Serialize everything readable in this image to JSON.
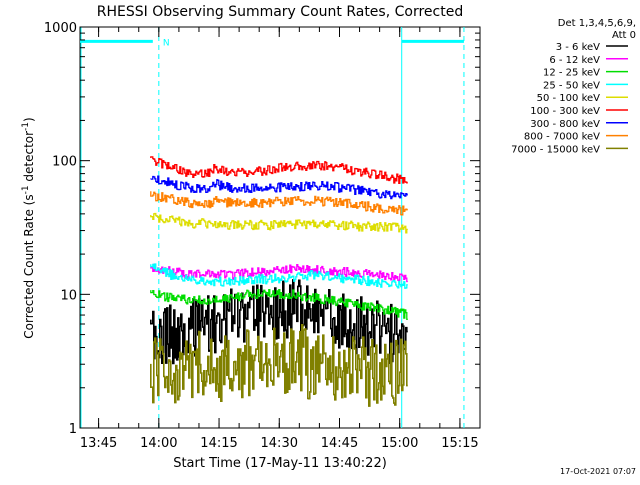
{
  "chart_data": {
    "type": "line",
    "title": "RHESSI Observing Summary Count Rates, Corrected",
    "xlabel": "Start Time (17-May-11 13:40:22)",
    "ylabel_main": "Corrected Count Rate (s",
    "ylabel_sup1": "-1",
    "ylabel_mid": " detector",
    "ylabel_sup2": "-1",
    "ylabel_end": ")",
    "footer": "17-Oct-2021 07:07",
    "y_scale": "log",
    "ylim": [
      1,
      1000
    ],
    "y_ticks": [
      "1",
      "10",
      "100",
      "1000"
    ],
    "xlim": [
      "13:40:22",
      "15:20:00"
    ],
    "x_ticks": [
      "13:45",
      "14:00",
      "14:15",
      "14:30",
      "14:45",
      "15:00",
      "15:15"
    ],
    "legend": {
      "header": [
        "Det 1,3,4,5,6,9,",
        "Att 0"
      ],
      "placement": "top-right",
      "entries": [
        {
          "label": "3 - 6 keV",
          "color": "#000000"
        },
        {
          "label": "6 - 12 keV",
          "color": "#ff00ff"
        },
        {
          "label": "12 - 25 keV",
          "color": "#00dd00"
        },
        {
          "label": "25 - 50 keV",
          "color": "#00ffff"
        },
        {
          "label": "50 - 100 keV",
          "color": "#dddd00"
        },
        {
          "label": "100 - 300 keV",
          "color": "#ff0000"
        },
        {
          "label": "300 - 800 keV",
          "color": "#0000ff"
        },
        {
          "label": "800 - 7000 keV",
          "color": "#ff8000"
        },
        {
          "label": "7000 - 15000 keV",
          "color": "#808000"
        }
      ]
    },
    "flags": {
      "night_label": "N",
      "color": "#00ffff",
      "boundaries": [
        "13:40:22",
        "14:00:00",
        "15:00:30",
        "15:16:00"
      ]
    },
    "series": [
      {
        "name": "3 - 6 keV",
        "color": "#000000",
        "x": [
          "13:58:00",
          "14:03:00",
          "14:08:00",
          "14:13:00",
          "14:18:00",
          "14:23:00",
          "14:28:00",
          "14:33:00",
          "14:38:00",
          "14:43:00",
          "14:48:00",
          "14:53:00",
          "14:58:00",
          "15:02:00"
        ],
        "y": [
          5.0,
          5.0,
          5.5,
          6.0,
          6.5,
          7.0,
          7.5,
          8.0,
          7.0,
          6.5,
          6.0,
          5.5,
          5.0,
          4.5
        ]
      },
      {
        "name": "6 - 12 keV",
        "color": "#ff00ff",
        "x": [
          "13:58:00",
          "14:03:00",
          "14:08:00",
          "14:13:00",
          "14:18:00",
          "14:23:00",
          "14:28:00",
          "14:33:00",
          "14:38:00",
          "14:43:00",
          "14:48:00",
          "14:53:00",
          "14:58:00",
          "15:02:00"
        ],
        "y": [
          16,
          15,
          14,
          14,
          14,
          14.5,
          15,
          15.5,
          15.5,
          15,
          14.5,
          14,
          13.5,
          13
        ]
      },
      {
        "name": "12 - 25 keV",
        "color": "#00dd00",
        "x": [
          "13:58:00",
          "14:03:00",
          "14:08:00",
          "14:13:00",
          "14:18:00",
          "14:23:00",
          "14:28:00",
          "14:33:00",
          "14:38:00",
          "14:43:00",
          "14:48:00",
          "14:53:00",
          "14:58:00",
          "15:02:00"
        ],
        "y": [
          10,
          9.5,
          9,
          9,
          9.5,
          10,
          10,
          10,
          9.5,
          9,
          8.5,
          8,
          7.5,
          7
        ]
      },
      {
        "name": "25 - 50 keV",
        "color": "#00ffff",
        "x": [
          "13:58:00",
          "14:03:00",
          "14:08:00",
          "14:13:00",
          "14:18:00",
          "14:23:00",
          "14:28:00",
          "14:33:00",
          "14:38:00",
          "14:43:00",
          "14:48:00",
          "14:53:00",
          "14:58:00",
          "15:02:00"
        ],
        "y": [
          16,
          14,
          13,
          12.5,
          12.5,
          13,
          13,
          13.5,
          14,
          13.5,
          13,
          12.5,
          12,
          11.5
        ]
      },
      {
        "name": "50 - 100 keV",
        "color": "#dddd00",
        "x": [
          "13:58:00",
          "14:03:00",
          "14:08:00",
          "14:13:00",
          "14:18:00",
          "14:23:00",
          "14:28:00",
          "14:33:00",
          "14:38:00",
          "14:43:00",
          "14:48:00",
          "14:53:00",
          "14:58:00",
          "15:02:00"
        ],
        "y": [
          38,
          36,
          34,
          34,
          33,
          33,
          33,
          33.5,
          33.5,
          33,
          32.5,
          32,
          31.5,
          31
        ]
      },
      {
        "name": "100 - 300 keV",
        "color": "#ff0000",
        "x": [
          "13:58:00",
          "14:03:00",
          "14:08:00",
          "14:13:00",
          "14:14:00",
          "14:18:00",
          "14:23:00",
          "14:28:00",
          "14:33:00",
          "14:38:00",
          "14:43:00",
          "14:48:00",
          "14:53:00",
          "14:58:00",
          "15:02:00"
        ],
        "y": [
          100,
          90,
          80,
          82,
          88,
          80,
          82,
          86,
          90,
          92,
          90,
          85,
          80,
          74,
          72
        ]
      },
      {
        "name": "300 - 800 keV",
        "color": "#0000ff",
        "x": [
          "13:58:00",
          "14:03:00",
          "14:08:00",
          "14:13:00",
          "14:14:00",
          "14:18:00",
          "14:23:00",
          "14:28:00",
          "14:33:00",
          "14:38:00",
          "14:43:00",
          "14:48:00",
          "14:53:00",
          "14:58:00",
          "15:02:00"
        ],
        "y": [
          73,
          68,
          62,
          62,
          67,
          62,
          62,
          63,
          64,
          65,
          64,
          61,
          58,
          55,
          54
        ]
      },
      {
        "name": "800 - 7000 keV",
        "color": "#ff8000",
        "x": [
          "13:58:00",
          "14:03:00",
          "14:08:00",
          "14:13:00",
          "14:14:00",
          "14:18:00",
          "14:23:00",
          "14:28:00",
          "14:33:00",
          "14:38:00",
          "14:43:00",
          "14:48:00",
          "14:53:00",
          "14:58:00",
          "15:02:00"
        ],
        "y": [
          55,
          52,
          48,
          48,
          51,
          48,
          48,
          49,
          50,
          50,
          49,
          47,
          45,
          43,
          42
        ]
      },
      {
        "name": "7000 - 15000 keV",
        "color": "#808000",
        "x": [
          "13:58:00",
          "14:03:00",
          "14:08:00",
          "14:13:00",
          "14:18:00",
          "14:23:00",
          "14:28:00",
          "14:33:00",
          "14:38:00",
          "14:43:00",
          "14:48:00",
          "14:53:00",
          "14:58:00",
          "15:02:00"
        ],
        "y": [
          2.5,
          2.5,
          3.0,
          2.5,
          3.0,
          3.0,
          3.0,
          3.5,
          3.0,
          3.0,
          3.0,
          2.5,
          2.5,
          2.5
        ]
      }
    ]
  }
}
